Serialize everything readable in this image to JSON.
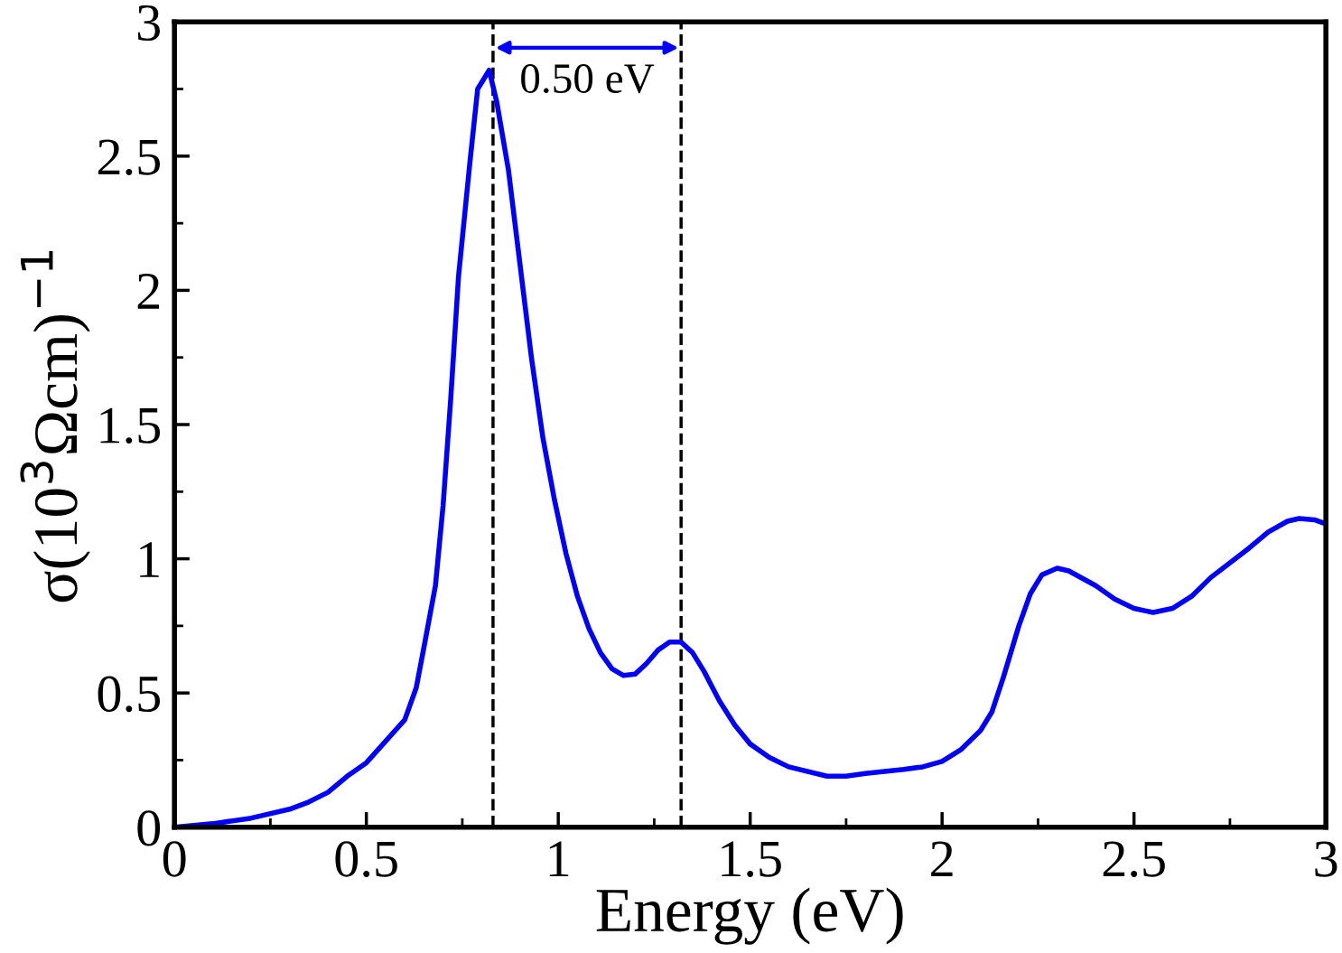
{
  "chart_data": {
    "type": "line",
    "xlabel": "Energy (eV)",
    "ylabel": "σ(10$^{3}$Ωcm)$^{−1}$",
    "xlim": [
      0,
      3
    ],
    "ylim": [
      0,
      3
    ],
    "xticks": [
      0,
      {
        "value": 0.25,
        "label": null
      },
      0.5,
      {
        "value": 0.75,
        "label": null
      },
      1,
      {
        "value": 1.25,
        "label": null
      },
      1.5,
      {
        "value": 1.75,
        "label": null
      },
      2,
      {
        "value": 2.25,
        "label": null
      },
      2.5,
      {
        "value": 2.75,
        "label": null
      },
      3
    ],
    "yticks": [
      0,
      {
        "value": 0.25,
        "label": null
      },
      0.5,
      {
        "value": 0.75,
        "label": null
      },
      1,
      {
        "value": 1.25,
        "label": null
      },
      1.5,
      {
        "value": 1.75,
        "label": null
      },
      2,
      {
        "value": 2.25,
        "label": null
      },
      2.5,
      {
        "value": 2.75,
        "label": null
      },
      3
    ],
    "grid": false,
    "legend": false,
    "marker": "none",
    "line_style": "solid",
    "series": [
      {
        "color": "#0000ff",
        "x": [
          0,
          0.1,
          0.2,
          0.3,
          0.35,
          0.4,
          0.45,
          0.5,
          0.55,
          0.6,
          0.63,
          0.65,
          0.68,
          0.7,
          0.72,
          0.74,
          0.77,
          0.79,
          0.82,
          0.84,
          0.87,
          0.9,
          0.93,
          0.96,
          0.99,
          1.02,
          1.05,
          1.08,
          1.11,
          1.14,
          1.17,
          1.2,
          1.23,
          1.26,
          1.29,
          1.32,
          1.35,
          1.38,
          1.42,
          1.46,
          1.5,
          1.55,
          1.6,
          1.7,
          1.75,
          1.8,
          1.9,
          1.95,
          2.0,
          2.05,
          2.1,
          2.13,
          2.16,
          2.2,
          2.23,
          2.26,
          2.3,
          2.33,
          2.4,
          2.45,
          2.5,
          2.55,
          2.6,
          2.65,
          2.7,
          2.8,
          2.85,
          2.9,
          2.93,
          2.97,
          3.0
        ],
        "values": [
          0,
          0.013,
          0.034,
          0.067,
          0.094,
          0.13,
          0.19,
          0.24,
          0.32,
          0.4,
          0.52,
          0.67,
          0.9,
          1.2,
          1.6,
          2.05,
          2.48,
          2.75,
          2.82,
          2.7,
          2.45,
          2.1,
          1.75,
          1.45,
          1.22,
          1.02,
          0.86,
          0.74,
          0.65,
          0.59,
          0.565,
          0.57,
          0.61,
          0.66,
          0.69,
          0.69,
          0.65,
          0.58,
          0.47,
          0.38,
          0.31,
          0.26,
          0.225,
          0.19,
          0.19,
          0.2,
          0.215,
          0.225,
          0.245,
          0.29,
          0.36,
          0.43,
          0.56,
          0.75,
          0.87,
          0.94,
          0.965,
          0.955,
          0.9,
          0.85,
          0.815,
          0.8,
          0.815,
          0.86,
          0.93,
          1.04,
          1.1,
          1.14,
          1.15,
          1.145,
          1.13
        ]
      }
    ],
    "ref_lines": [
      {
        "axis": "x",
        "value": 0.83,
        "color": "#000000",
        "line_style": "dashed"
      },
      {
        "axis": "x",
        "value": 1.32,
        "color": "#000000",
        "line_style": "dashed"
      }
    ],
    "annotations": [
      "0.50 eV"
    ]
  }
}
